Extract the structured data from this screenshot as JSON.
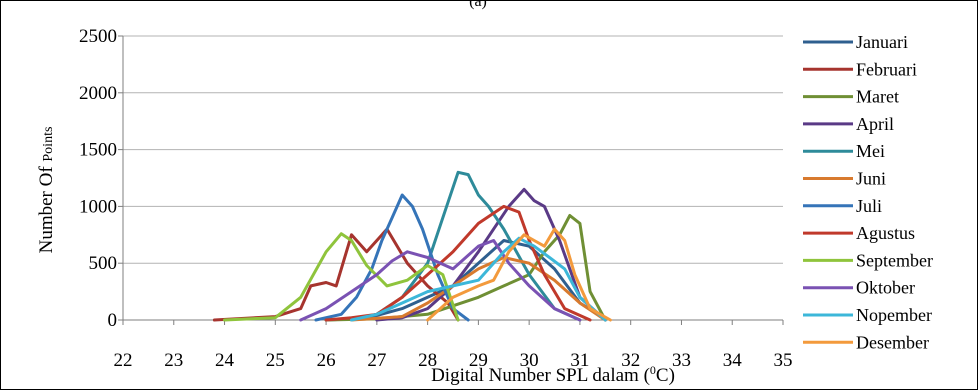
{
  "panel_label": "(a)",
  "chart_data": {
    "type": "line",
    "title": "",
    "xlabel": "Digital Number SPL dalam (",
    "xlabel_sup": "0",
    "xlabel_end": "C)",
    "ylabel": "Number Of ",
    "ylabel_small": "Points",
    "xlim": [
      22,
      35
    ],
    "ylim": [
      0,
      2500
    ],
    "xticks": [
      "22",
      "23",
      "24",
      "25",
      "26",
      "27",
      "28",
      "29",
      "30",
      "31",
      "32",
      "33",
      "34",
      "35"
    ],
    "yticks": [
      "0",
      "500",
      "1000",
      "1500",
      "2000",
      "2500"
    ],
    "grid": "horizontal",
    "legend_position": "right",
    "series": [
      {
        "name": "Januari",
        "color": "#2f5f8f",
        "x": [
          26.0,
          26.5,
          27.0,
          27.5,
          28.0,
          28.5,
          29.0,
          29.5,
          30.0,
          30.5,
          31.0,
          31.5
        ],
        "y": [
          0,
          10,
          40,
          100,
          200,
          300,
          500,
          700,
          650,
          450,
          150,
          10
        ]
      },
      {
        "name": "Februari",
        "color": "#a6342e",
        "x": [
          23.8,
          25.0,
          25.5,
          25.7,
          26.0,
          26.2,
          26.5,
          26.8,
          27.2,
          27.6,
          28.0,
          28.4,
          28.6
        ],
        "y": [
          0,
          30,
          100,
          300,
          330,
          300,
          750,
          600,
          800,
          500,
          300,
          150,
          0
        ]
      },
      {
        "name": "Maret",
        "color": "#6f8f34",
        "x": [
          26.0,
          27.0,
          28.0,
          29.0,
          29.5,
          30.0,
          30.3,
          30.6,
          30.8,
          31.0,
          31.2,
          31.5
        ],
        "y": [
          0,
          10,
          50,
          200,
          300,
          400,
          600,
          750,
          920,
          850,
          250,
          0
        ]
      },
      {
        "name": "April",
        "color": "#5a3a86",
        "x": [
          27.0,
          27.5,
          28.0,
          28.5,
          29.0,
          29.3,
          29.6,
          29.9,
          30.1,
          30.3,
          30.6,
          31.0,
          31.5
        ],
        "y": [
          0,
          20,
          100,
          300,
          600,
          800,
          1000,
          1150,
          1050,
          1000,
          700,
          200,
          0
        ]
      },
      {
        "name": "Mei",
        "color": "#2e8b9a",
        "x": [
          26.5,
          27.0,
          27.5,
          28.0,
          28.3,
          28.6,
          28.8,
          29.0,
          29.2,
          29.5,
          30.0,
          30.5,
          31.0
        ],
        "y": [
          0,
          50,
          200,
          500,
          900,
          1300,
          1280,
          1100,
          1000,
          800,
          400,
          100,
          0
        ]
      },
      {
        "name": "Juni",
        "color": "#d87a2e",
        "x": [
          26.5,
          27.5,
          28.0,
          28.5,
          29.0,
          29.5,
          30.0,
          30.5,
          31.0,
          31.5
        ],
        "y": [
          0,
          30,
          150,
          300,
          450,
          550,
          500,
          350,
          150,
          0
        ]
      },
      {
        "name": "Juli",
        "color": "#3574b8",
        "x": [
          25.8,
          26.3,
          26.6,
          26.9,
          27.1,
          27.3,
          27.5,
          27.7,
          27.9,
          28.2,
          28.5,
          28.8
        ],
        "y": [
          0,
          50,
          200,
          450,
          700,
          900,
          1100,
          1000,
          800,
          400,
          100,
          0
        ]
      },
      {
        "name": "Agustus",
        "color": "#c0392b",
        "x": [
          26.0,
          26.5,
          27.0,
          27.5,
          28.0,
          28.5,
          29.0,
          29.5,
          29.8,
          30.0,
          30.3,
          30.7,
          31.2
        ],
        "y": [
          0,
          20,
          50,
          200,
          400,
          600,
          850,
          1000,
          950,
          700,
          400,
          100,
          0
        ]
      },
      {
        "name": "September",
        "color": "#8fc43c",
        "x": [
          24.0,
          25.0,
          25.5,
          26.0,
          26.3,
          26.5,
          26.8,
          27.2,
          27.6,
          28.0,
          28.3,
          28.6
        ],
        "y": [
          0,
          20,
          200,
          600,
          760,
          700,
          480,
          300,
          350,
          480,
          400,
          0
        ]
      },
      {
        "name": "Oktober",
        "color": "#7a52b3",
        "x": [
          25.5,
          26.0,
          26.5,
          27.0,
          27.3,
          27.6,
          28.0,
          28.5,
          29.0,
          29.3,
          29.6,
          30.0,
          30.5,
          31.0
        ],
        "y": [
          0,
          100,
          250,
          400,
          520,
          600,
          550,
          450,
          650,
          700,
          500,
          300,
          100,
          0
        ]
      },
      {
        "name": "Nopember",
        "color": "#3cb7d9",
        "x": [
          26.5,
          27.0,
          27.5,
          28.0,
          28.5,
          29.0,
          29.5,
          29.8,
          30.1,
          30.4,
          30.7,
          31.0,
          31.5
        ],
        "y": [
          0,
          50,
          150,
          250,
          300,
          350,
          600,
          720,
          650,
          550,
          450,
          200,
          0
        ]
      },
      {
        "name": "Desember",
        "color": "#f39a3c",
        "x": [
          28.0,
          28.5,
          29.0,
          29.3,
          29.6,
          29.9,
          30.1,
          30.3,
          30.5,
          30.7,
          30.9,
          31.2,
          31.6
        ],
        "y": [
          0,
          200,
          300,
          350,
          600,
          750,
          700,
          650,
          800,
          700,
          400,
          100,
          0
        ]
      }
    ]
  }
}
